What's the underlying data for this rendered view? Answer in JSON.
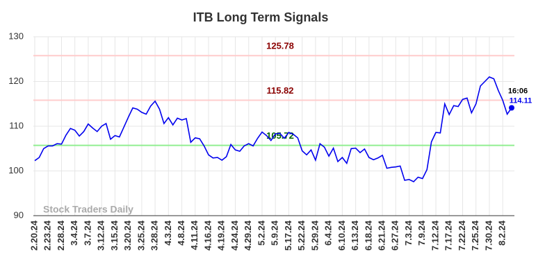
{
  "chart_data": {
    "type": "line",
    "title": "ITB Long Term Signals",
    "categories": [
      "2.20.24",
      null,
      null,
      "2.23.24",
      null,
      null,
      "2.28.24",
      null,
      null,
      "3.4.24",
      null,
      null,
      "3.7.24",
      null,
      null,
      "3.12.24",
      null,
      null,
      "3.15.24",
      null,
      null,
      "3.20.24",
      null,
      null,
      "3.25.24",
      null,
      null,
      "3.28.24",
      null,
      null,
      "4.3.24",
      null,
      null,
      "4.8.24",
      null,
      null,
      "4.11.24",
      null,
      null,
      "4.16.24",
      null,
      null,
      "4.19.24",
      null,
      null,
      "4.24.24",
      null,
      null,
      "4.29.24",
      null,
      null,
      "5.2.24",
      null,
      null,
      "5.9.24",
      null,
      null,
      "5.17.24",
      null,
      null,
      "5.22.24",
      null,
      null,
      "5.29.24",
      null,
      null,
      "6.4.24",
      null,
      null,
      "6.10.24",
      null,
      null,
      "6.13.24",
      null,
      null,
      "6.18.24",
      null,
      null,
      "6.21.24",
      null,
      null,
      "6.27.24",
      null,
      null,
      "7.3.24",
      null,
      null,
      "7.9.24",
      null,
      null,
      "7.12.24",
      null,
      null,
      "7.17.24",
      null,
      null,
      "7.22.24",
      null,
      null,
      "7.25.24",
      null,
      null,
      "7.30.24",
      null,
      null,
      "8.2.24",
      null,
      null
    ],
    "values": [
      102.3,
      103,
      105,
      105.6,
      105.6,
      106.1,
      106,
      108,
      109.5,
      109.1,
      107.8,
      108.8,
      110.5,
      109.6,
      108.8,
      110,
      110.6,
      107.1,
      107.9,
      107.6,
      109.8,
      112,
      114.1,
      113.8,
      113.1,
      112.7,
      114.5,
      115.6,
      113.8,
      110.6,
      111.9,
      110.3,
      111.8,
      111.4,
      111.7,
      106.4,
      107.4,
      107.2,
      105.6,
      103.6,
      102.9,
      103,
      102.4,
      103.2,
      105.9,
      104.7,
      104.4,
      105.6,
      106.1,
      105.6,
      107.3,
      108.7,
      107.9,
      106.8,
      108.3,
      108.4,
      107.3,
      108.6,
      108.2,
      107.4,
      104.5,
      103.6,
      104.7,
      102.4,
      106.1,
      105.3,
      103.3,
      105.1,
      102.1,
      103,
      101.7,
      105,
      105.1,
      104.1,
      104.9,
      103,
      102.5,
      102.9,
      103.5,
      100.6,
      100.8,
      100.9,
      101.1,
      97.9,
      98.1,
      97.6,
      98.6,
      98.3,
      100.3,
      106.5,
      108.6,
      108.5,
      115,
      112.6,
      114.6,
      114.4,
      116,
      116.3,
      113,
      115,
      119,
      120,
      121,
      120.6,
      118,
      115.8,
      112.7,
      114.11
    ],
    "color": "#0000ee",
    "ylim": [
      90,
      130
    ],
    "yticks": [
      90,
      100,
      110,
      120,
      130
    ],
    "grid": true,
    "hlines": [
      {
        "value": 125.78,
        "color": "#ffcccc",
        "label_color": "#8b0000"
      },
      {
        "value": 115.82,
        "color": "#ffcccc",
        "label_color": "#8b0000"
      },
      {
        "value": 105.72,
        "color": "#90ee90",
        "label_color": "#006400"
      }
    ],
    "last_label": "16:06",
    "watermark": "Stock Traders Daily"
  }
}
